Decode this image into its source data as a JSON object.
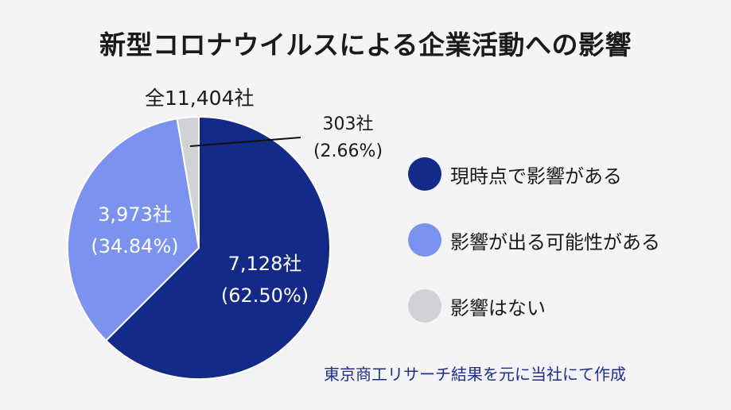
{
  "title": "新型コロナウイルスによる企業活動への影響",
  "source_note": "東京商工リサーチ結果を元に当社にて作成",
  "chart_data": {
    "type": "pie",
    "total_label": "全11,404社",
    "slices": [
      {
        "label": "現時点で影響がある",
        "value": 7128,
        "count_label": "7,128社",
        "percent_label": "(62.50%)",
        "color": "#142a88"
      },
      {
        "label": "影響が出る可能性がある",
        "value": 3973,
        "count_label": "3,973社",
        "percent_label": "(34.84%)",
        "color": "#7b93ef"
      },
      {
        "label": "影響はない",
        "value": 303,
        "count_label": "303社",
        "percent_label": "(2.66%)",
        "color": "#d1d2d6"
      }
    ],
    "legend_placement": "right"
  }
}
